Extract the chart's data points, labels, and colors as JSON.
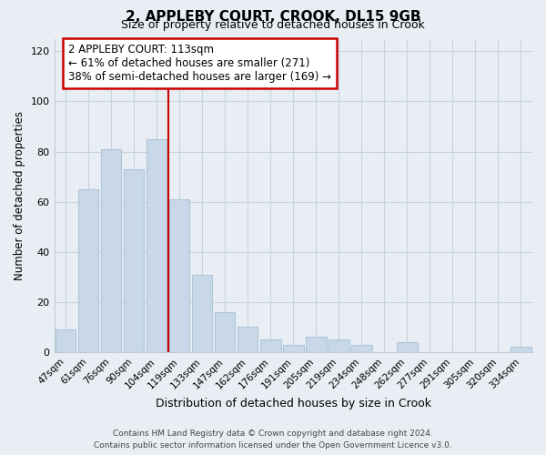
{
  "title": "2, APPLEBY COURT, CROOK, DL15 9GB",
  "subtitle": "Size of property relative to detached houses in Crook",
  "xlabel": "Distribution of detached houses by size in Crook",
  "ylabel": "Number of detached properties",
  "bar_color": "#c8d8e8",
  "bar_edge_color": "#aec6d8",
  "categories": [
    "47sqm",
    "61sqm",
    "76sqm",
    "90sqm",
    "104sqm",
    "119sqm",
    "133sqm",
    "147sqm",
    "162sqm",
    "176sqm",
    "191sqm",
    "205sqm",
    "219sqm",
    "234sqm",
    "248sqm",
    "262sqm",
    "277sqm",
    "291sqm",
    "305sqm",
    "320sqm",
    "334sqm"
  ],
  "values": [
    9,
    65,
    81,
    73,
    85,
    61,
    31,
    16,
    10,
    5,
    3,
    6,
    5,
    3,
    0,
    4,
    0,
    0,
    0,
    0,
    2
  ],
  "ylim": [
    0,
    125
  ],
  "yticks": [
    0,
    20,
    40,
    60,
    80,
    100,
    120
  ],
  "marker_label": "2 APPLEBY COURT: 113sqm",
  "annotation_line1": "← 61% of detached houses are smaller (271)",
  "annotation_line2": "38% of semi-detached houses are larger (169) →",
  "vline_color": "#cc0000",
  "annotation_box_edge_color": "#cc0000",
  "footer_line1": "Contains HM Land Registry data © Crown copyright and database right 2024.",
  "footer_line2": "Contains public sector information licensed under the Open Government Licence v3.0.",
  "background_color": "#e8eef4",
  "plot_bg_color": "#e8eef4"
}
